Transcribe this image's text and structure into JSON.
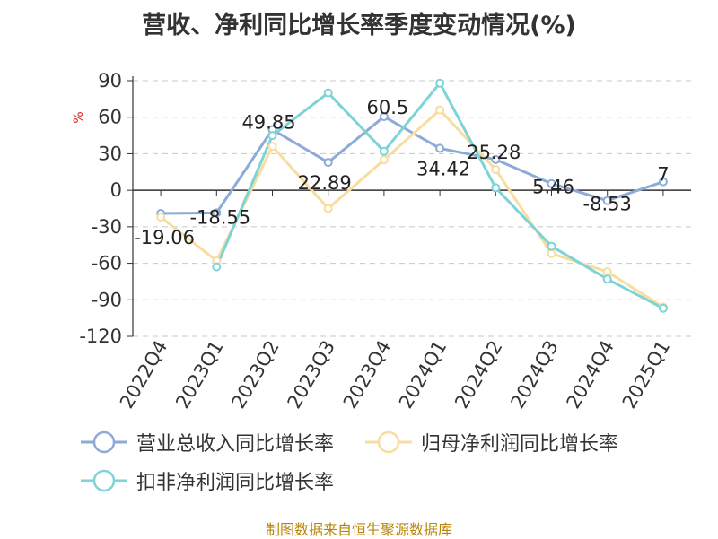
{
  "title": "营收、净利同比增长率季度变动情况(%)",
  "source": "制图数据来自恒生聚源数据库",
  "chart_data": {
    "type": "line",
    "ylabel": "%",
    "xlabel": "",
    "ylim": [
      -120,
      90
    ],
    "yticks": [
      90,
      60,
      30,
      0,
      -30,
      -60,
      -90,
      -120
    ],
    "grid": true,
    "legend_position": "bottom",
    "categories": [
      "2022Q4",
      "2023Q1",
      "2023Q2",
      "2023Q3",
      "2023Q4",
      "2024Q1",
      "2024Q2",
      "2024Q3",
      "2024Q4",
      "2025Q1"
    ],
    "series": [
      {
        "name": "营业总收入同比增长率",
        "color": "#8eaad6",
        "values": [
          -19.06,
          -18.55,
          49.85,
          22.89,
          60.5,
          34.42,
          25.28,
          5.46,
          -8.53,
          7
        ],
        "labels": [
          "-19.06",
          "-18.55",
          "49.85",
          "22.89",
          "60.5",
          "34.42",
          "25.28",
          "5.46",
          "-8.53",
          "7"
        ]
      },
      {
        "name": "归母净利润同比增长率",
        "color": "#f8dca0",
        "values": [
          -22,
          -58,
          36,
          -15,
          25,
          66,
          17,
          -52,
          -67,
          -96
        ]
      },
      {
        "name": "扣非净利润同比增长率",
        "color": "#7ed3d6",
        "values": [
          null,
          -63,
          45,
          80,
          32,
          88,
          2,
          -46,
          -73,
          -97
        ]
      }
    ]
  }
}
